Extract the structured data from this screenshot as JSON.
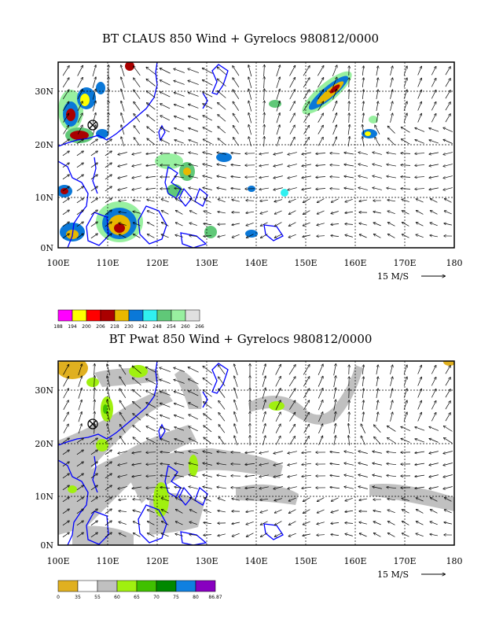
{
  "panel1": {
    "title": "BT CLAUS 850 Wind + Gyrelocs 980812/0000",
    "lat_labels": [
      "30N",
      "20N",
      "10N",
      "0N"
    ],
    "lon_labels": [
      "100E",
      "110E",
      "120E",
      "130E",
      "140E",
      "150E",
      "160E",
      "170E",
      "180"
    ],
    "vector_ref": "15 M/S",
    "colorbar": {
      "ticks": [
        "188",
        "194",
        "200",
        "206",
        "218",
        "230",
        "242",
        "248",
        "254",
        "260",
        "266"
      ],
      "colors": [
        "#ff00ff",
        "#ffff00",
        "#ff0000",
        "#aa0000",
        "#e8b800",
        "#0a78d8",
        "#30f0f0",
        "#60c878",
        "#98f0a0",
        "#e0e0e0"
      ]
    }
  },
  "panel2": {
    "title": "BT Pwat 850 Wind + Gyrelocs 980812/0000",
    "lat_labels": [
      "30N",
      "20N",
      "10N",
      "0N"
    ],
    "lon_labels": [
      "100E",
      "110E",
      "120E",
      "130E",
      "140E",
      "150E",
      "160E",
      "170E",
      "180"
    ],
    "vector_ref": "15 M/S",
    "colorbar": {
      "ticks": [
        "0",
        "35",
        "55",
        "60",
        "65",
        "70",
        "75",
        "80",
        "86.87"
      ],
      "colors": [
        "#e0b020",
        "#ffffff",
        "#c0c0c0",
        "#a0f010",
        "#40c000",
        "#008800",
        "#1080e0",
        "#8800c0"
      ]
    }
  },
  "colors": {
    "coast": "#0000ff",
    "grid": "#000000"
  }
}
